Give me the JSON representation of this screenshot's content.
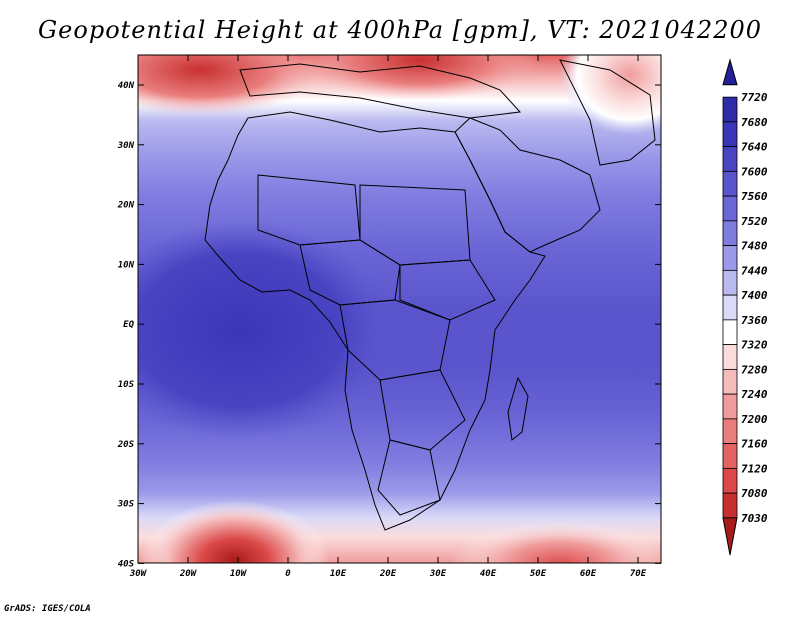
{
  "title": "Geopotential Height at 400hPa [gpm], VT: 2021042200",
  "credit": "GrADS: IGES/COLA",
  "map": {
    "lon_labels": [
      "30W",
      "20W",
      "10W",
      "0",
      "10E",
      "20E",
      "30E",
      "40E",
      "50E",
      "60E",
      "70E"
    ],
    "lat_labels": [
      "40N",
      "30N",
      "20N",
      "10N",
      "EQ",
      "10S",
      "20S",
      "30S",
      "40S"
    ]
  },
  "colorbar": {
    "levels": [
      "7720",
      "7680",
      "7640",
      "7600",
      "7560",
      "7520",
      "7480",
      "7440",
      "7400",
      "7360",
      "7320",
      "7280",
      "7240",
      "7200",
      "7160",
      "7120",
      "7080",
      "7030"
    ],
    "colors": [
      "#23209a",
      "#2e2ba8",
      "#3a36b8",
      "#4944c2",
      "#5a55cc",
      "#6a66d6",
      "#7f7ce0",
      "#9a98e8",
      "#bab9f0",
      "#d9d9f8",
      "#ffffff",
      "#fbdcdc",
      "#f6bcbc",
      "#f09c9c",
      "#ea7e7e",
      "#e46262",
      "#dc4848",
      "#c83030",
      "#a81c1c"
    ]
  },
  "chart_data": {
    "type": "heatmap",
    "title": "Geopotential Height at 400hPa [gpm], VT: 2021042200",
    "x_ticks": [
      "30W",
      "20W",
      "10W",
      "0",
      "10E",
      "20E",
      "30E",
      "40E",
      "50E",
      "60E",
      "70E"
    ],
    "y_ticks": [
      "40N",
      "30N",
      "20N",
      "10N",
      "EQ",
      "10S",
      "20S",
      "30S",
      "40S"
    ],
    "xlim": [
      -30,
      75
    ],
    "ylim": [
      -40,
      45
    ],
    "legend_placement": "right",
    "contour_levels": [
      7030,
      7080,
      7120,
      7160,
      7200,
      7240,
      7280,
      7320,
      7360,
      7400,
      7440,
      7480,
      7520,
      7560,
      7600,
      7640,
      7680,
      7720
    ]
  }
}
